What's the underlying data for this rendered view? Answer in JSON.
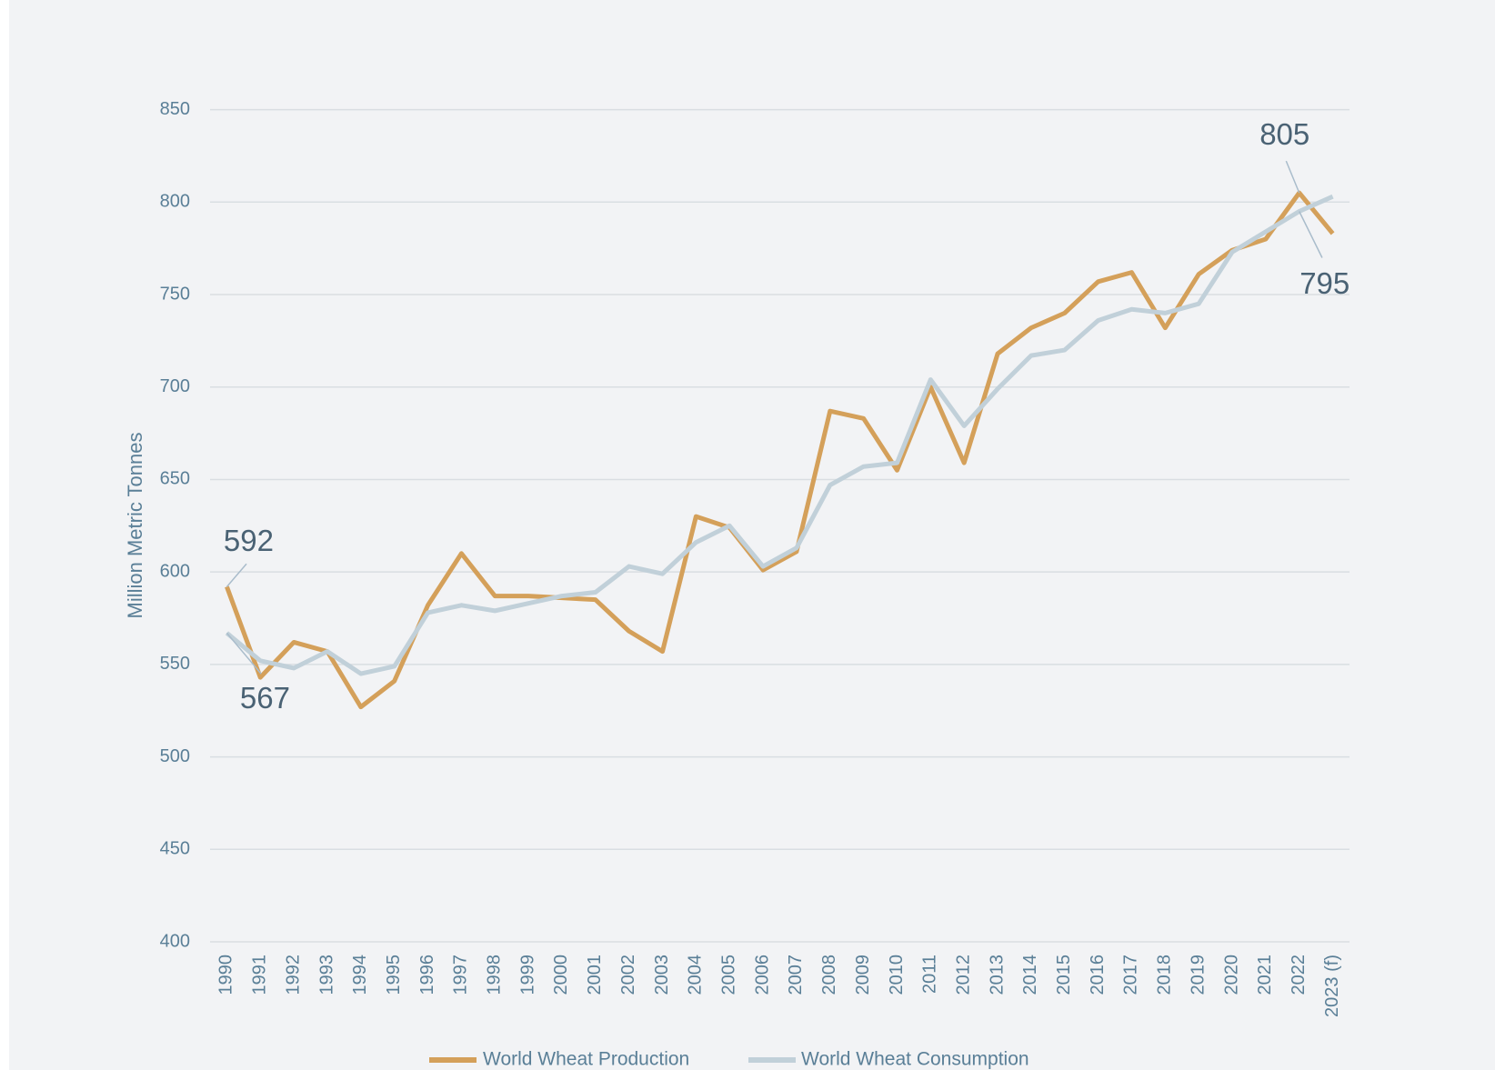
{
  "chart_data": {
    "type": "line",
    "y_label": "Million Metric Tonnes",
    "categories": [
      "1990",
      "1991",
      "1992",
      "1993",
      "1994",
      "1995",
      "1996",
      "1997",
      "1998",
      "1999",
      "2000",
      "2001",
      "2002",
      "2003",
      "2004",
      "2005",
      "2006",
      "2007",
      "2008",
      "2009",
      "2010",
      "2011",
      "2012",
      "2013",
      "2014",
      "2015",
      "2016",
      "2017",
      "2018",
      "2019",
      "2020",
      "2021",
      "2022",
      "2023 (f)"
    ],
    "series": [
      {
        "name": "World Wheat Production",
        "color": "#d4a05a",
        "values": [
          592,
          543,
          562,
          557,
          527,
          541,
          582,
          610,
          587,
          587,
          586,
          585,
          568,
          557,
          630,
          624,
          601,
          611,
          687,
          683,
          655,
          700,
          659,
          718,
          732,
          740,
          757,
          762,
          732,
          761,
          774,
          780,
          805,
          783
        ]
      },
      {
        "name": "World Wheat Consumption",
        "color": "#c1d0d9",
        "values": [
          567,
          552,
          548,
          557,
          545,
          549,
          578,
          582,
          579,
          583,
          587,
          589,
          603,
          599,
          616,
          625,
          603,
          613,
          647,
          657,
          659,
          704,
          679,
          699,
          717,
          720,
          736,
          742,
          740,
          745,
          773,
          784,
          795,
          803
        ]
      }
    ],
    "annotations": [
      {
        "series": 0,
        "index": 0
      },
      {
        "series": 1,
        "index": 0
      },
      {
        "series": 0,
        "index": 32
      },
      {
        "series": 1,
        "index": 32
      }
    ],
    "ylim": [
      400,
      850
    ],
    "yticks": [
      400,
      450,
      500,
      550,
      600,
      650,
      700,
      750,
      800,
      850
    ],
    "grid": true,
    "legend": "bottom"
  }
}
